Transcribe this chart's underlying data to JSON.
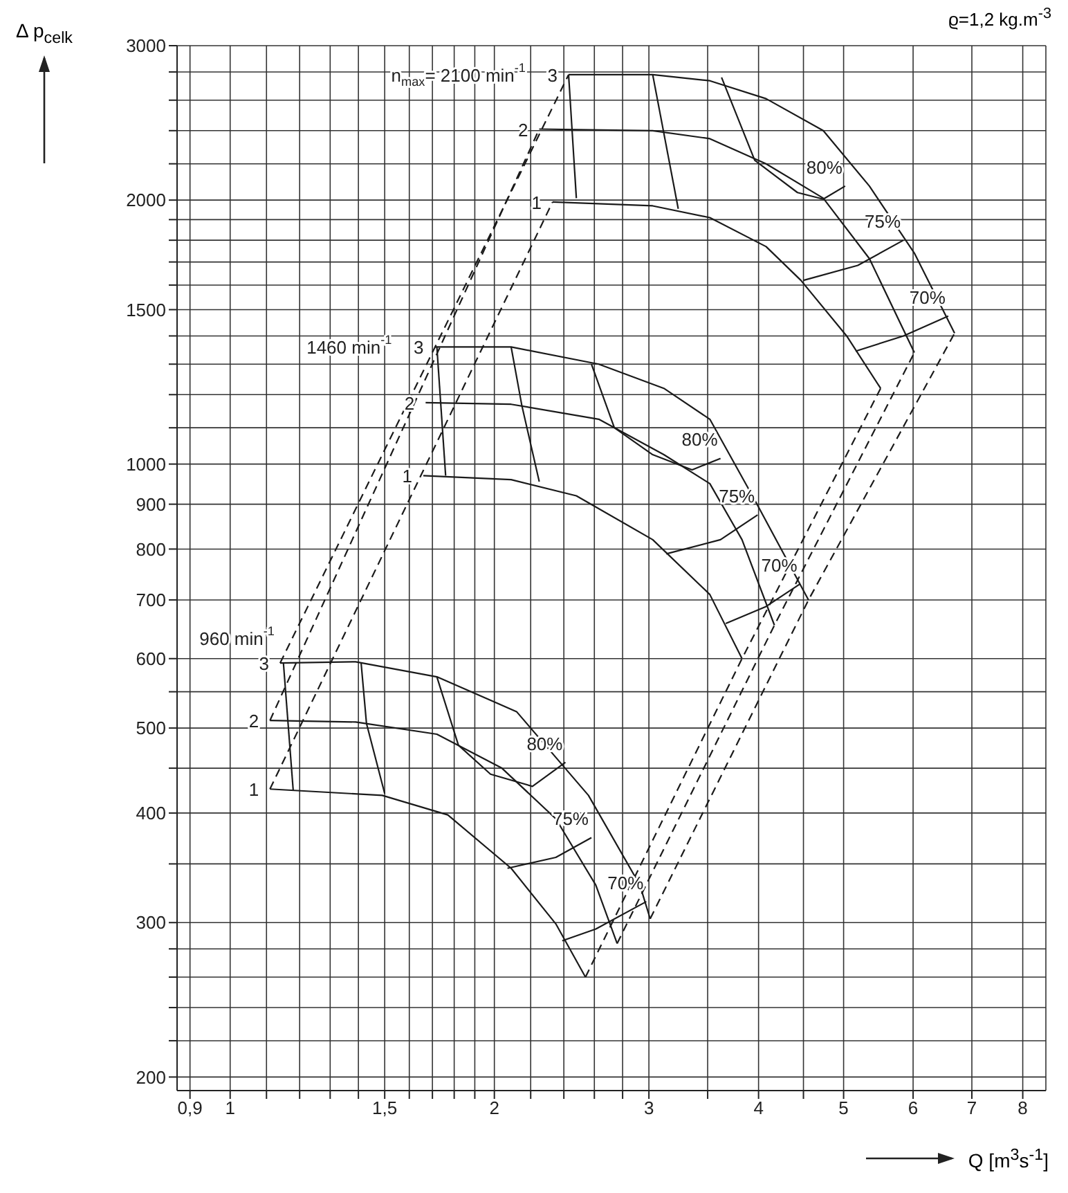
{
  "chart_data": {
    "type": "line",
    "xlabel": "Q [m$^{3}$s$^{-1}$]",
    "ylabel": "Δ p$_{celk}$",
    "log": "xy",
    "grid": true,
    "marker": "none",
    "xlim": [
      0.87,
      8.5
    ],
    "ylim": [
      193,
      3000
    ],
    "xticks": [
      {
        "value": 0.9,
        "label": "0,9"
      },
      1,
      {
        "value": 1.1,
        "label": null
      },
      {
        "value": 1.2,
        "label": null
      },
      {
        "value": 1.3,
        "label": null
      },
      {
        "value": 1.4,
        "label": null
      },
      {
        "value": 1.5,
        "label": "1,5"
      },
      {
        "value": 1.6,
        "label": null
      },
      {
        "value": 1.7,
        "label": null
      },
      {
        "value": 1.8,
        "label": null
      },
      {
        "value": 1.9,
        "label": null
      },
      2,
      {
        "value": 2.2,
        "label": null
      },
      {
        "value": 2.4,
        "label": null
      },
      {
        "value": 2.6,
        "label": null
      },
      {
        "value": 2.8,
        "label": null
      },
      3,
      {
        "value": 3.5,
        "label": null
      },
      4,
      {
        "value": 4.5,
        "label": null
      },
      5,
      6,
      7,
      8
    ],
    "yticks": [
      200,
      {
        "value": 220,
        "label": null
      },
      {
        "value": 240,
        "label": null
      },
      {
        "value": 260,
        "label": null
      },
      {
        "value": 280,
        "label": null
      },
      300,
      {
        "value": 350,
        "label": null
      },
      400,
      {
        "value": 450,
        "label": null
      },
      500,
      {
        "value": 550,
        "label": null
      },
      600,
      700,
      800,
      900,
      1000,
      {
        "value": 1100,
        "label": null
      },
      {
        "value": 1200,
        "label": null
      },
      {
        "value": 1300,
        "label": null
      },
      {
        "value": 1400,
        "label": null
      },
      1500,
      {
        "value": 1600,
        "label": null
      },
      {
        "value": 1700,
        "label": null
      },
      {
        "value": 1800,
        "label": null
      },
      {
        "value": 1900,
        "label": null
      },
      2000,
      {
        "value": 2200,
        "label": null
      },
      {
        "value": 2400,
        "label": null
      },
      {
        "value": 2600,
        "label": null
      },
      {
        "value": 2800,
        "label": null
      },
      3000
    ],
    "series": [
      {
        "color": "#1a1a1a",
        "x": [
          1.11,
          1.49,
          1.77,
          2.09,
          2.35,
          2.54
        ],
        "values": [
          426,
          419,
          398,
          346,
          299,
          260
        ]
      },
      {
        "color": "#1a1a1a",
        "x": [
          1.11,
          1.39,
          1.72,
          2.04,
          2.35,
          2.61,
          2.76
        ],
        "values": [
          510,
          508,
          492,
          450,
          394,
          331,
          284
        ]
      },
      {
        "color": "#1a1a1a",
        "x": [
          1.14,
          1.39,
          1.72,
          2.12,
          2.56,
          2.93,
          3.01
        ],
        "values": [
          593,
          595,
          572,
          522,
          419,
          331,
          303
        ]
      },
      {
        "color": "#1a1a1a",
        "x": [
          1.66,
          2.09,
          2.48,
          3.03,
          3.52,
          3.83
        ],
        "values": [
          970,
          960,
          920,
          820,
          710,
          600
        ]
      },
      {
        "color": "#1a1a1a",
        "x": [
          1.67,
          2.09,
          2.63,
          3.12,
          3.52,
          3.83,
          4.17
        ],
        "values": [
          1175,
          1170,
          1125,
          1025,
          950,
          820,
          655
        ]
      },
      {
        "color": "#1a1a1a",
        "x": [
          1.71,
          2.09,
          2.63,
          3.12,
          3.52,
          3.96,
          4.56
        ],
        "values": [
          1360,
          1360,
          1300,
          1220,
          1125,
          910,
          700
        ]
      },
      {
        "color": "#1a1a1a",
        "x": [
          2.33,
          3.03,
          3.52,
          4.08,
          4.47,
          5.04,
          5.51
        ],
        "values": [
          1990,
          1970,
          1910,
          1770,
          1620,
          1400,
          1220
        ]
      },
      {
        "color": "#1a1a1a",
        "x": [
          2.25,
          3.03,
          3.52,
          4.08,
          4.74,
          5.35,
          6.02
        ],
        "values": [
          2410,
          2400,
          2350,
          2200,
          2010,
          1715,
          1340
        ]
      },
      {
        "color": "#1a1a1a",
        "x": [
          2.43,
          3.03,
          3.52,
          4.08,
          4.74,
          5.35,
          6.02,
          6.69
        ],
        "values": [
          2780,
          2780,
          2736,
          2610,
          2400,
          2075,
          1740,
          1410
        ]
      },
      {
        "color": "#1a1a1a",
        "line_style": "dashed",
        "x": [
          1.14,
          2.43
        ],
        "values": [
          593,
          2780
        ]
      },
      {
        "color": "#1a1a1a",
        "line_style": "dashed",
        "x": [
          1.11,
          2.25
        ],
        "values": [
          510,
          2410
        ]
      },
      {
        "color": "#1a1a1a",
        "line_style": "dashed",
        "x": [
          1.11,
          2.33
        ],
        "values": [
          426,
          1990
        ]
      },
      {
        "color": "#1a1a1a",
        "line_style": "dashed",
        "x": [
          3.01,
          4.56,
          6.69
        ],
        "values": [
          303,
          700,
          1410
        ]
      },
      {
        "color": "#1a1a1a",
        "line_style": "dashed",
        "x": [
          2.76,
          4.17,
          6.02
        ],
        "values": [
          284,
          655,
          1340
        ]
      },
      {
        "color": "#1a1a1a",
        "line_style": "dashed",
        "x": [
          2.54,
          3.83,
          5.51
        ],
        "values": [
          260,
          600,
          1220
        ]
      },
      {
        "color": "#1a1a1a",
        "x": [
          1.72,
          1.82,
          1.98,
          2.21,
          2.41
        ],
        "values": [
          572,
          478,
          443,
          429,
          457
        ]
      },
      {
        "color": "#1a1a1a",
        "x": [
          2.58,
          2.74,
          3.03,
          3.36,
          3.62
        ],
        "values": [
          1300,
          1100,
          1025,
          985,
          1015
        ]
      },
      {
        "color": "#1a1a1a",
        "x": [
          3.63,
          3.96,
          4.43,
          4.74,
          5.02
        ],
        "values": [
          2760,
          2220,
          2040,
          2005,
          2075
        ]
      },
      {
        "color": "#1a1a1a",
        "x": [
          1.41,
          1.43,
          1.5
        ],
        "values": [
          593,
          506,
          421
        ]
      },
      {
        "color": "#1a1a1a",
        "x": [
          2.07,
          2.35,
          2.58
        ],
        "values": [
          346,
          356,
          375
        ]
      },
      {
        "color": "#1a1a1a",
        "x": [
          2.09,
          2.15,
          2.25
        ],
        "values": [
          1360,
          1165,
          955
        ]
      },
      {
        "color": "#1a1a1a",
        "x": [
          3.14,
          3.62,
          3.99
        ],
        "values": [
          790,
          820,
          875
        ]
      },
      {
        "color": "#1a1a1a",
        "x": [
          3.03,
          3.24
        ],
        "values": [
          2780,
          1955
        ]
      },
      {
        "color": "#1a1a1a",
        "x": [
          4.5,
          5.19,
          5.85
        ],
        "values": [
          1620,
          1685,
          1800
        ]
      },
      {
        "color": "#1a1a1a",
        "x": [
          1.15,
          1.18
        ],
        "values": [
          593,
          424
        ]
      },
      {
        "color": "#1a1a1a",
        "x": [
          2.39,
          2.61,
          2.98
        ],
        "values": [
          286,
          295,
          317
        ]
      },
      {
        "color": "#1a1a1a",
        "x": [
          1.72,
          1.76
        ],
        "values": [
          1360,
          970
        ]
      },
      {
        "color": "#1a1a1a",
        "x": [
          3.67,
          4.08,
          4.46
        ],
        "values": [
          658,
          688,
          730
        ]
      },
      {
        "color": "#1a1a1a",
        "x": [
          2.43,
          2.48
        ],
        "values": [
          2780,
          2010
        ]
      },
      {
        "color": "#1a1a1a",
        "x": [
          5.16,
          5.85,
          6.58
        ],
        "values": [
          1345,
          1400,
          1475
        ]
      }
    ],
    "annotations": [
      "ϱ=1,2 kg.m$^{-3}$",
      {
        "text": "3",
        "x": 2.43,
        "y": 2780
      },
      {
        "text": "n$_{max}$= 2100 min$^{-1}$",
        "x": 2.43,
        "y": 2780
      },
      {
        "text": "2",
        "x": 2.25,
        "y": 2410
      },
      {
        "text": "1",
        "x": 2.33,
        "y": 1990
      },
      {
        "text": "3",
        "x": 1.71,
        "y": 1360
      },
      {
        "text": "1460 min$^{-1}$",
        "x": 1.71,
        "y": 1360
      },
      {
        "text": "2",
        "x": 1.67,
        "y": 1175
      },
      {
        "text": "1",
        "x": 1.66,
        "y": 970
      },
      {
        "text": "3",
        "x": 1.14,
        "y": 593
      },
      {
        "text": "960 min$^{-1}$",
        "x": 1.14,
        "y": 593
      },
      {
        "text": "2",
        "x": 1.11,
        "y": 510
      },
      {
        "text": "1",
        "x": 1.11,
        "y": 426
      },
      {
        "text": "80%",
        "x": 5.02,
        "y": 2075
      },
      {
        "text": "75%",
        "x": 5.85,
        "y": 1800
      },
      {
        "text": "70%",
        "x": 6.58,
        "y": 1475
      },
      {
        "text": "80%",
        "x": 3.62,
        "y": 1015
      },
      {
        "text": "75%",
        "x": 3.99,
        "y": 875
      },
      {
        "text": "70%",
        "x": 4.46,
        "y": 730
      },
      {
        "text": "80%",
        "x": 2.41,
        "y": 457
      },
      {
        "text": "75%",
        "x": 2.58,
        "y": 375
      },
      {
        "text": "70%",
        "x": 2.98,
        "y": 317
      }
    ]
  }
}
